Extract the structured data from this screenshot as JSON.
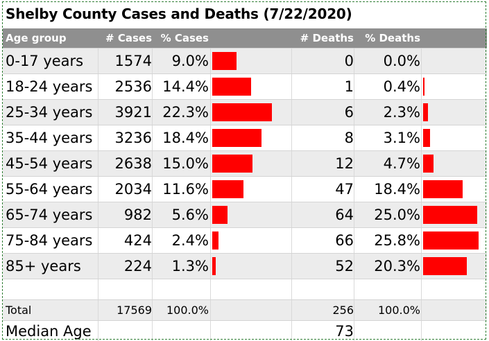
{
  "title": "Shelby County Cases and Deaths (7/22/2020)",
  "headers": {
    "age_group": "Age group",
    "cases": "# Cases",
    "pct_cases": "% Cases",
    "deaths": "# Deaths",
    "pct_deaths": "% Deaths"
  },
  "chart_data": {
    "type": "table",
    "title": "Shelby County Cases and Deaths (7/22/2020)",
    "columns": [
      "Age group",
      "# Cases",
      "% Cases",
      "# Deaths",
      "% Deaths"
    ],
    "rows": [
      {
        "age": "0-17 years",
        "cases": "1574",
        "pct_cases": "9.0%",
        "cases_pct_value": 9.0,
        "deaths": "0",
        "pct_deaths": "0.0%",
        "deaths_pct_value": 0.0
      },
      {
        "age": "18-24 years",
        "cases": "2536",
        "pct_cases": "14.4%",
        "cases_pct_value": 14.4,
        "deaths": "1",
        "pct_deaths": "0.4%",
        "deaths_pct_value": 0.4
      },
      {
        "age": "25-34 years",
        "cases": "3921",
        "pct_cases": "22.3%",
        "cases_pct_value": 22.3,
        "deaths": "6",
        "pct_deaths": "2.3%",
        "deaths_pct_value": 2.3
      },
      {
        "age": "35-44 years",
        "cases": "3236",
        "pct_cases": "18.4%",
        "cases_pct_value": 18.4,
        "deaths": "8",
        "pct_deaths": "3.1%",
        "deaths_pct_value": 3.1
      },
      {
        "age": "45-54 years",
        "cases": "2638",
        "pct_cases": "15.0%",
        "cases_pct_value": 15.0,
        "deaths": "12",
        "pct_deaths": "4.7%",
        "deaths_pct_value": 4.7
      },
      {
        "age": "55-64 years",
        "cases": "2034",
        "pct_cases": "11.6%",
        "cases_pct_value": 11.6,
        "deaths": "47",
        "pct_deaths": "18.4%",
        "deaths_pct_value": 18.4
      },
      {
        "age": "65-74 years",
        "cases": "982",
        "pct_cases": "5.6%",
        "cases_pct_value": 5.6,
        "deaths": "64",
        "pct_deaths": "25.0%",
        "deaths_pct_value": 25.0
      },
      {
        "age": "75-84 years",
        "cases": "424",
        "pct_cases": "2.4%",
        "cases_pct_value": 2.4,
        "deaths": "66",
        "pct_deaths": "25.8%",
        "deaths_pct_value": 25.8
      },
      {
        "age": "85+ years",
        "cases": "224",
        "pct_cases": "1.3%",
        "cases_pct_value": 1.3,
        "deaths": "52",
        "pct_deaths": "20.3%",
        "deaths_pct_value": 20.3
      }
    ],
    "bar_color": "#ff0000",
    "cases_bar_scale_max": 22.3,
    "deaths_bar_scale_max": 25.8
  },
  "total": {
    "label": "Total",
    "cases": "17569",
    "pct_cases": "100.0%",
    "deaths": "256",
    "pct_deaths": "100.0%"
  },
  "median": {
    "label": "Median Age",
    "deaths": "73"
  }
}
